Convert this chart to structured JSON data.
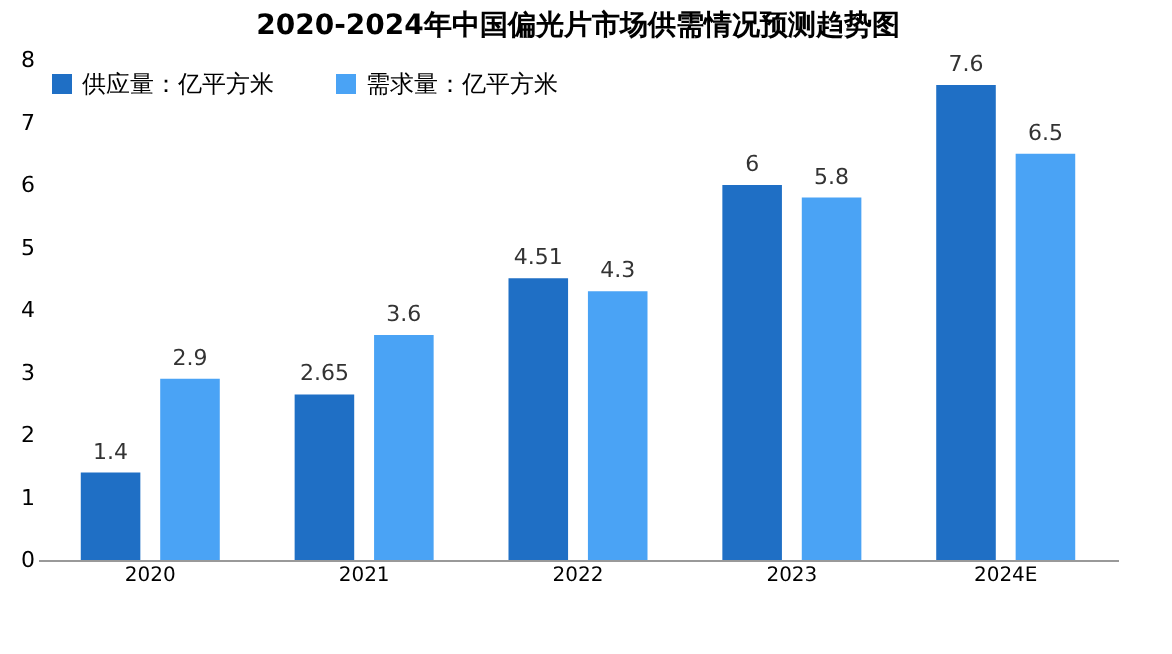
{
  "chart_data": {
    "type": "bar",
    "title": "2020-2024年中国偏光片市场供需情况预测趋势图",
    "categories": [
      "2020",
      "2021",
      "2022",
      "2023",
      "2024E"
    ],
    "series": [
      {
        "name": "供应量：亿平方米",
        "color": "#1f6fc5",
        "values": [
          1.4,
          2.65,
          4.51,
          6,
          7.6
        ]
      },
      {
        "name": "需求量：亿平方米",
        "color": "#4aa3f5",
        "values": [
          2.9,
          3.6,
          4.3,
          5.8,
          6.5
        ]
      }
    ],
    "ylim": [
      0,
      8
    ],
    "yticks": [
      0,
      1,
      2,
      3,
      4,
      5,
      6,
      7,
      8
    ],
    "data_labels": true,
    "legend": "top left",
    "grid": false
  }
}
